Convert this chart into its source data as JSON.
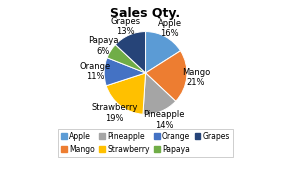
{
  "title": "Sales Qty.",
  "labels": [
    "Apple",
    "Mango",
    "Pineapple",
    "Strawberry",
    "Orange",
    "Papaya",
    "Grapes"
  ],
  "values": [
    16,
    21,
    14,
    19,
    11,
    6,
    13
  ],
  "colors": [
    "#5B9BD5",
    "#ED7D31",
    "#A5A5A5",
    "#FFC000",
    "#4472C4",
    "#70AD47",
    "#264478"
  ],
  "legend_order": [
    "Apple",
    "Mango",
    "Pineapple",
    "Strawberry",
    "Orange",
    "Papaya",
    "Grapes"
  ],
  "legend_colors": [
    "#5B9BD5",
    "#ED7D31",
    "#A5A5A5",
    "#FFC000",
    "#4472C4",
    "#70AD47",
    "#264478"
  ],
  "title_fontsize": 9,
  "label_fontsize": 6,
  "legend_fontsize": 5.5,
  "background_color": "#FFFFFF",
  "startangle": 90
}
